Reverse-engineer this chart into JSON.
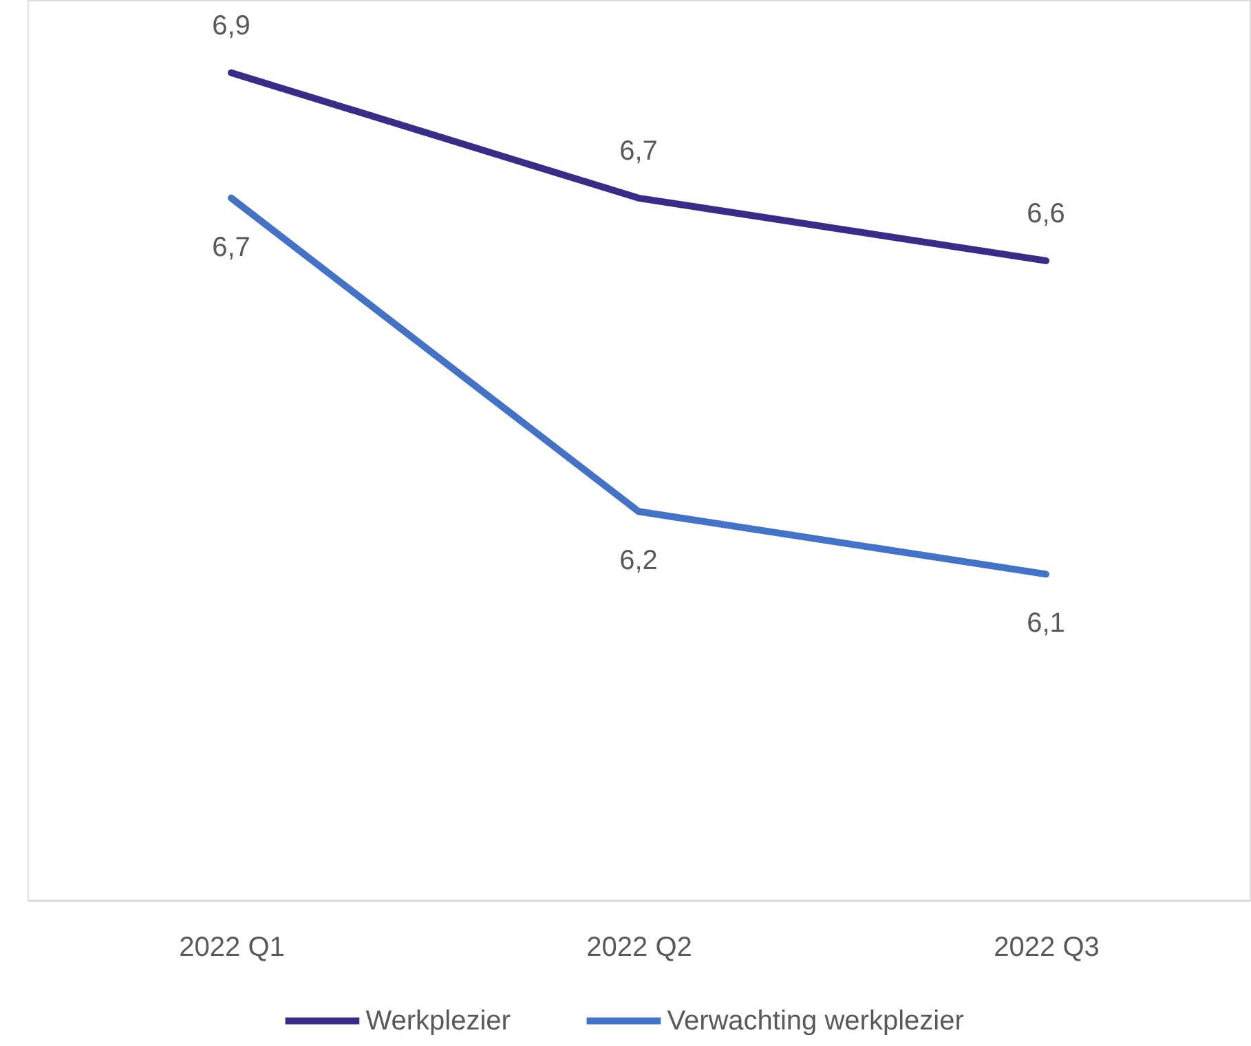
{
  "chart_data": {
    "type": "line",
    "categories": [
      "2022 Q1",
      "2022 Q2",
      "2022 Q3"
    ],
    "series": [
      {
        "name": "Werkplezier",
        "color": "#372c86",
        "values": [
          6.9,
          6.7,
          6.6
        ],
        "value_labels": [
          "6,9",
          "6,7",
          "6,6"
        ]
      },
      {
        "name": "Verwachting werkplezier",
        "color": "#4472c4",
        "values": [
          6.7,
          6.2,
          6.1
        ],
        "value_labels": [
          "6,7",
          "6,2",
          "6,1"
        ]
      }
    ],
    "legend": "bottom",
    "line_style": "solid"
  }
}
